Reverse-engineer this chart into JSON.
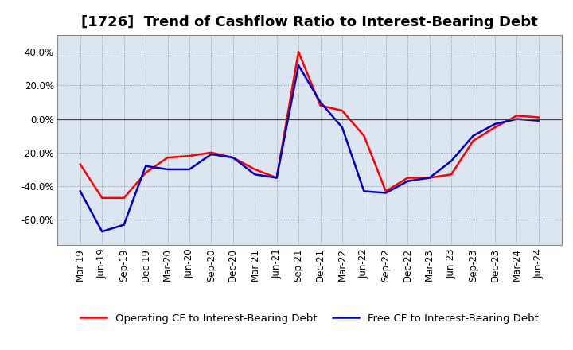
{
  "title": "[1726]  Trend of Cashflow Ratio to Interest-Bearing Debt",
  "x_labels": [
    "Mar-19",
    "Jun-19",
    "Sep-19",
    "Dec-19",
    "Mar-20",
    "Jun-20",
    "Sep-20",
    "Dec-20",
    "Mar-21",
    "Jun-21",
    "Sep-21",
    "Dec-21",
    "Mar-22",
    "Jun-22",
    "Sep-22",
    "Dec-22",
    "Mar-23",
    "Jun-23",
    "Sep-23",
    "Dec-23",
    "Mar-24",
    "Jun-24"
  ],
  "operating_cf": [
    -0.27,
    -0.47,
    -0.47,
    -0.32,
    -0.23,
    -0.22,
    -0.2,
    -0.23,
    -0.3,
    -0.35,
    0.4,
    0.08,
    0.05,
    -0.1,
    -0.43,
    -0.35,
    -0.35,
    -0.33,
    -0.13,
    -0.05,
    0.02,
    0.01
  ],
  "free_cf": [
    -0.43,
    -0.67,
    -0.63,
    -0.28,
    -0.3,
    -0.3,
    -0.21,
    -0.23,
    -0.33,
    -0.35,
    0.32,
    0.1,
    -0.05,
    -0.43,
    -0.44,
    -0.37,
    -0.35,
    -0.25,
    -0.1,
    -0.03,
    0.0,
    -0.01
  ],
  "operating_cf_color": "#ff0000",
  "free_cf_color": "#0000cc",
  "background_color": "#ffffff",
  "plot_bg_color": "#dce6f0",
  "grid_color": "#555577",
  "ylim": [
    -0.75,
    0.5
  ],
  "yticks": [
    -0.6,
    -0.4,
    -0.2,
    0.0,
    0.2,
    0.4
  ],
  "legend_operating": "Operating CF to Interest-Bearing Debt",
  "legend_free": "Free CF to Interest-Bearing Debt",
  "title_fontsize": 13,
  "axis_fontsize": 8.5,
  "legend_fontsize": 9.5,
  "line_width": 1.8
}
